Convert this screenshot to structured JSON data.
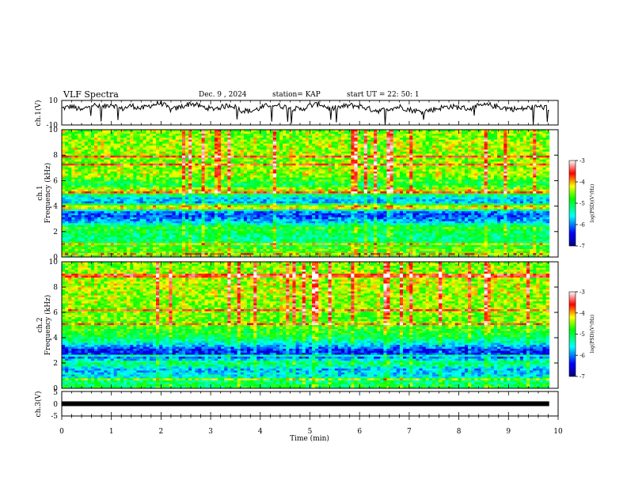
{
  "header": {
    "title": "VLF Spectra",
    "date": "Dec. 9 , 2024",
    "station": "station= KAP",
    "start_ut": "start  UT  =   22: 50: 1"
  },
  "chart_data": [
    {
      "type": "line",
      "id": "ch1-waveform",
      "ylabel": "ch.1(V)",
      "ylim": [
        -10,
        10
      ],
      "yticks": [
        "10",
        "-10"
      ],
      "xlim": [
        0,
        10
      ],
      "x_end": 9.82,
      "color": "#000000",
      "description_values": [
        3.5,
        5.2,
        1.8,
        6.8,
        4.1,
        7.2,
        2.9,
        5.8,
        3.3,
        6.1,
        8.0,
        2.2,
        4.9,
        7.6,
        5.0,
        3.1,
        4.4,
        6.5,
        2.0,
        1.2,
        3.8,
        6.9,
        5.5,
        4.0,
        2.5,
        5.9,
        7.1,
        3.0,
        4.6,
        6.0,
        5.3,
        2.8,
        1.5,
        3.6,
        4.8,
        2.4,
        0.9,
        2.0,
        3.9,
        5.1,
        4.3,
        3.2,
        5.6,
        6.2,
        4.5,
        3.4,
        2.7,
        4.1,
        5.0,
        3.7
      ]
    },
    {
      "type": "heatmap",
      "id": "ch1-spectrogram",
      "ylabel_top": "ch.1",
      "ylabel": "Frequency  (kHz)",
      "ylim": [
        0,
        10
      ],
      "yticks": [
        "0",
        "2",
        "4",
        "6",
        "8",
        "10"
      ],
      "xlim": [
        0,
        10
      ],
      "x_end": 9.82,
      "colorbar": {
        "label": "log(PSD)(V²/Hz)",
        "range": [
          -7,
          -3
        ],
        "ticks": [
          "-3",
          "-4",
          "-5",
          "-6",
          "-7"
        ]
      },
      "bands": [
        {
          "f": 0.2,
          "level": 0.55
        },
        {
          "f": 0.6,
          "level": 0.6
        },
        {
          "f": 1.0,
          "level": 0.5
        },
        {
          "f": 1.5,
          "level": 0.45
        },
        {
          "f": 2.0,
          "level": 0.5
        },
        {
          "f": 2.3,
          "level": 0.55
        },
        {
          "f": 2.8,
          "level": 0.3
        },
        {
          "f": 3.2,
          "level": 0.2
        },
        {
          "f": 3.6,
          "level": 0.25
        },
        {
          "f": 3.9,
          "level": 0.8
        },
        {
          "f": 4.3,
          "level": 0.3
        },
        {
          "f": 4.7,
          "level": 0.35
        },
        {
          "f": 5.2,
          "level": 0.7
        },
        {
          "f": 5.7,
          "level": 0.5
        },
        {
          "f": 6.5,
          "level": 0.65
        },
        {
          "f": 7.5,
          "level": 0.62
        },
        {
          "f": 8.5,
          "level": 0.65
        },
        {
          "f": 9.5,
          "level": 0.62
        }
      ]
    },
    {
      "type": "heatmap",
      "id": "ch2-spectrogram",
      "ylabel_top": "ch.2",
      "ylabel": "Frequency  (kHz)",
      "ylim": [
        0,
        10
      ],
      "yticks": [
        "0",
        "2",
        "4",
        "6",
        "8",
        "10"
      ],
      "xlim": [
        0,
        10
      ],
      "x_end": 9.82,
      "colorbar": {
        "label": "log(PSD)(V²/Hz)",
        "range": [
          -7,
          -3
        ],
        "ticks": [
          "-3",
          "-4",
          "-5",
          "-6",
          "-7"
        ]
      },
      "bands": [
        {
          "f": 0.2,
          "level": 0.5
        },
        {
          "f": 0.6,
          "level": 0.45
        },
        {
          "f": 1.0,
          "level": 0.35
        },
        {
          "f": 1.5,
          "level": 0.3
        },
        {
          "f": 2.0,
          "level": 0.5
        },
        {
          "f": 2.5,
          "level": 0.2
        },
        {
          "f": 3.0,
          "level": 0.15
        },
        {
          "f": 3.5,
          "level": 0.35
        },
        {
          "f": 4.0,
          "level": 0.5
        },
        {
          "f": 4.6,
          "level": 0.55
        },
        {
          "f": 5.2,
          "level": 0.6
        },
        {
          "f": 6.0,
          "level": 0.62
        },
        {
          "f": 7.0,
          "level": 0.64
        },
        {
          "f": 8.0,
          "level": 0.66
        },
        {
          "f": 9.0,
          "level": 0.64
        },
        {
          "f": 9.7,
          "level": 0.62
        }
      ]
    },
    {
      "type": "line",
      "id": "ch3-waveform",
      "ylabel": "ch.3(V)",
      "ylim": [
        -5,
        5
      ],
      "yticks": [
        "5",
        "0",
        "-5"
      ],
      "xlim": [
        0,
        10
      ],
      "x_end": 9.82,
      "value": 0,
      "color": "#000000"
    }
  ],
  "xaxis": {
    "label": "Time  (min)",
    "ticks": [
      "0",
      "1",
      "2",
      "3",
      "4",
      "5",
      "6",
      "7",
      "8",
      "9",
      "10"
    ]
  }
}
